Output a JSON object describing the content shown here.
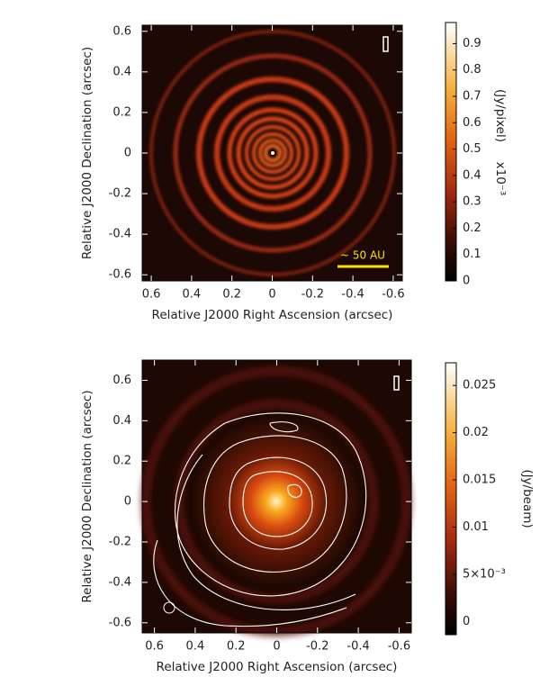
{
  "chart_data": [
    {
      "type": "image",
      "xlabel": "Relative J2000 Right Ascension (arcsec)",
      "ylabel": "Relative J2000 Declination (arcsec)",
      "xlim": [
        0.645,
        -0.645
      ],
      "xticks": [
        0.6,
        0.4,
        0.2,
        0,
        -0.2,
        -0.4,
        -0.6
      ],
      "ylim": [
        -0.63,
        0.63
      ],
      "yticks": [
        -0.6,
        -0.4,
        -0.2,
        0,
        0.2,
        0.4,
        0.6
      ],
      "colorbar": {
        "label": "(Jy/pixel)",
        "scale": "x10⁻³",
        "lim": [
          0,
          0.98
        ],
        "ticks": [
          0,
          0.1,
          0.2,
          0.3,
          0.4,
          0.5,
          0.6,
          0.7,
          0.8,
          0.9
        ]
      },
      "annotation": "~ 50 AU"
    },
    {
      "type": "image",
      "xlabel": "Relative J2000 Right Ascension (arcsec)",
      "ylabel": "Relative J2000 Declination (arcsec)",
      "xlim": [
        0.66,
        -0.66
      ],
      "xticks": [
        0.6,
        0.4,
        0.2,
        0,
        -0.2,
        -0.4,
        -0.6
      ],
      "ylim": [
        -0.65,
        0.7
      ],
      "yticks": [
        -0.6,
        -0.4,
        -0.2,
        0,
        0.2,
        0.4,
        0.6
      ],
      "colorbar": {
        "label": "(Jy/beam)",
        "lim": [
          -0.0014,
          0.0274
        ],
        "ticks": [
          0,
          {
            "value": 0.005,
            "label": "5×10⁻³"
          },
          0.01,
          0.015,
          0.02,
          0.025
        ]
      }
    }
  ]
}
